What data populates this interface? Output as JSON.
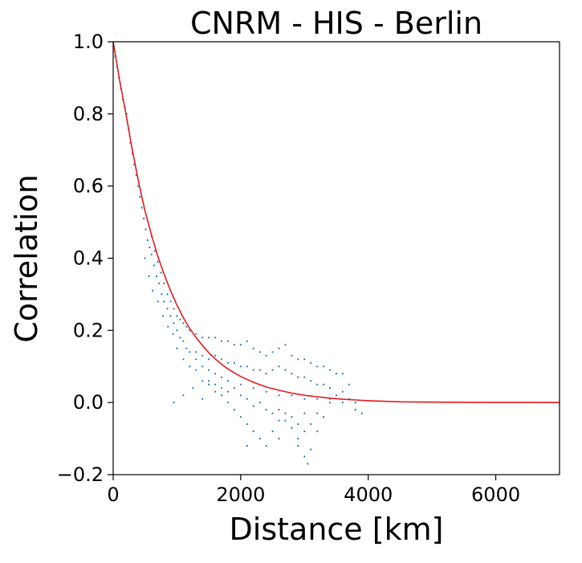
{
  "chart_data": {
    "type": "scatter",
    "title": "CNRM - HIS - Berlin",
    "xlabel": "Distance [km]",
    "ylabel": "Correlation",
    "xlim": [
      0,
      7000
    ],
    "ylim": [
      -0.2,
      1.0
    ],
    "x_ticks": [
      0,
      2000,
      4000,
      6000
    ],
    "x_tick_labels": [
      "0",
      "2000",
      "4000",
      "6000"
    ],
    "y_ticks": [
      -0.2,
      0.0,
      0.2,
      0.4,
      0.6,
      0.8,
      1.0
    ],
    "y_tick_labels": [
      "−0.2",
      "0.0",
      "0.2",
      "0.4",
      "0.6",
      "0.8",
      "1.0"
    ],
    "grid": false,
    "legend": "none",
    "colors": {
      "scatter": "#1f77b4",
      "fit": "#e31a1c"
    },
    "scatter_points": [
      [
        30,
        0.96
      ],
      [
        60,
        0.93
      ],
      [
        90,
        0.9
      ],
      [
        120,
        0.87
      ],
      [
        150,
        0.84
      ],
      [
        180,
        0.82
      ],
      [
        210,
        0.8
      ],
      [
        240,
        0.76
      ],
      [
        270,
        0.72
      ],
      [
        300,
        0.69
      ],
      [
        330,
        0.66
      ],
      [
        360,
        0.63
      ],
      [
        390,
        0.6
      ],
      [
        420,
        0.57
      ],
      [
        450,
        0.54
      ],
      [
        480,
        0.51
      ],
      [
        510,
        0.48
      ],
      [
        540,
        0.45
      ],
      [
        570,
        0.43
      ],
      [
        600,
        0.41
      ],
      [
        640,
        0.38
      ],
      [
        680,
        0.35
      ],
      [
        720,
        0.33
      ],
      [
        760,
        0.3
      ],
      [
        800,
        0.28
      ],
      [
        850,
        0.26
      ],
      [
        900,
        0.24
      ],
      [
        950,
        0.22
      ],
      [
        1000,
        0.2
      ],
      [
        1050,
        0.18
      ],
      [
        1100,
        0.17
      ],
      [
        1150,
        0.15
      ],
      [
        1200,
        0.14
      ],
      [
        1300,
        0.12
      ],
      [
        1400,
        0.1
      ],
      [
        1500,
        0.09
      ],
      [
        1600,
        0.08
      ],
      [
        1700,
        0.07
      ],
      [
        1800,
        0.06
      ],
      [
        2000,
        0.05
      ],
      [
        2200,
        0.04
      ],
      [
        2400,
        0.03
      ],
      [
        2600,
        0.02
      ],
      [
        2800,
        0.02
      ],
      [
        3000,
        0.01
      ],
      [
        3200,
        0.01
      ],
      [
        3400,
        0.01
      ],
      [
        3600,
        0.0
      ],
      [
        3800,
        0.0
      ],
      [
        500,
        0.4
      ],
      [
        560,
        0.35
      ],
      [
        620,
        0.31
      ],
      [
        700,
        0.28
      ],
      [
        780,
        0.24
      ],
      [
        860,
        0.21
      ],
      [
        940,
        0.19
      ],
      [
        1000,
        0.15
      ],
      [
        1100,
        0.12
      ],
      [
        1200,
        0.1
      ],
      [
        1300,
        0.09
      ],
      [
        1400,
        0.06
      ],
      [
        1500,
        0.05
      ],
      [
        1600,
        0.03
      ],
      [
        1700,
        0.02
      ],
      [
        1800,
        0.0
      ],
      [
        1900,
        -0.02
      ],
      [
        2000,
        -0.04
      ],
      [
        2100,
        -0.06
      ],
      [
        2200,
        -0.08
      ],
      [
        2300,
        -0.1
      ],
      [
        2400,
        -0.12
      ],
      [
        2500,
        -0.08
      ],
      [
        2600,
        -0.05
      ],
      [
        2700,
        -0.03
      ],
      [
        2800,
        -0.07
      ],
      [
        2900,
        -0.12
      ],
      [
        3000,
        -0.15
      ],
      [
        3050,
        -0.17
      ],
      [
        3100,
        -0.13
      ],
      [
        3200,
        -0.08
      ],
      [
        3300,
        -0.04
      ],
      [
        3400,
        0.0
      ],
      [
        3500,
        0.02
      ],
      [
        3600,
        0.03
      ],
      [
        3700,
        0.01
      ],
      [
        3800,
        -0.02
      ],
      [
        3900,
        -0.03
      ],
      [
        600,
        0.46
      ],
      [
        650,
        0.42
      ],
      [
        700,
        0.39
      ],
      [
        750,
        0.36
      ],
      [
        800,
        0.33
      ],
      [
        850,
        0.3
      ],
      [
        900,
        0.28
      ],
      [
        950,
        0.26
      ],
      [
        1000,
        0.24
      ],
      [
        1050,
        0.23
      ],
      [
        1100,
        0.22
      ],
      [
        1150,
        0.21
      ],
      [
        1200,
        0.2
      ],
      [
        1300,
        0.19
      ],
      [
        1400,
        0.18
      ],
      [
        1500,
        0.18
      ],
      [
        1600,
        0.18
      ],
      [
        1700,
        0.17
      ],
      [
        1800,
        0.17
      ],
      [
        1900,
        0.16
      ],
      [
        2000,
        0.16
      ],
      [
        2100,
        0.17
      ],
      [
        2200,
        0.15
      ],
      [
        2300,
        0.14
      ],
      [
        2400,
        0.13
      ],
      [
        2500,
        0.14
      ],
      [
        2600,
        0.15
      ],
      [
        2700,
        0.16
      ],
      [
        2800,
        0.13
      ],
      [
        2900,
        0.12
      ],
      [
        3000,
        0.12
      ],
      [
        3100,
        0.11
      ],
      [
        3200,
        0.1
      ],
      [
        3300,
        0.1
      ],
      [
        3400,
        0.09
      ],
      [
        3500,
        0.08
      ],
      [
        1300,
        0.14
      ],
      [
        1400,
        0.13
      ],
      [
        1500,
        0.12
      ],
      [
        1600,
        0.13
      ],
      [
        1700,
        0.12
      ],
      [
        1800,
        0.11
      ],
      [
        1900,
        0.11
      ],
      [
        2000,
        0.1
      ],
      [
        2100,
        0.1
      ],
      [
        2200,
        0.09
      ],
      [
        2300,
        0.09
      ],
      [
        2400,
        0.08
      ],
      [
        2500,
        0.09
      ],
      [
        2600,
        0.1
      ],
      [
        2700,
        0.09
      ],
      [
        2800,
        0.08
      ],
      [
        2900,
        0.07
      ],
      [
        3000,
        0.07
      ],
      [
        3100,
        0.06
      ],
      [
        3200,
        0.05
      ],
      [
        3300,
        0.05
      ],
      [
        3400,
        0.04
      ],
      [
        1500,
        0.06
      ],
      [
        1600,
        0.05
      ],
      [
        1700,
        0.04
      ],
      [
        1800,
        0.03
      ],
      [
        1900,
        0.04
      ],
      [
        2000,
        0.02
      ],
      [
        2100,
        0.01
      ],
      [
        2200,
        -0.01
      ],
      [
        2300,
        0.0
      ],
      [
        2400,
        -0.02
      ],
      [
        2500,
        -0.03
      ],
      [
        2600,
        -0.02
      ],
      [
        2700,
        -0.05
      ],
      [
        2800,
        -0.04
      ],
      [
        2900,
        -0.06
      ],
      [
        3000,
        -0.08
      ],
      [
        3100,
        -0.06
      ],
      [
        3200,
        -0.03
      ],
      [
        950,
        0.0
      ],
      [
        1100,
        0.02
      ],
      [
        1250,
        0.04
      ],
      [
        1400,
        0.01
      ],
      [
        2100,
        -0.12
      ],
      [
        2600,
        -0.1
      ],
      [
        2900,
        -0.1
      ],
      [
        3000,
        -0.03
      ],
      [
        3600,
        0.08
      ],
      [
        3700,
        0.05
      ]
    ],
    "fit_curve": [
      [
        0,
        1.0
      ],
      [
        100,
        0.895
      ],
      [
        200,
        0.8
      ],
      [
        300,
        0.7
      ],
      [
        400,
        0.61
      ],
      [
        500,
        0.53
      ],
      [
        600,
        0.465
      ],
      [
        700,
        0.405
      ],
      [
        800,
        0.355
      ],
      [
        900,
        0.31
      ],
      [
        1000,
        0.27
      ],
      [
        1100,
        0.235
      ],
      [
        1200,
        0.205
      ],
      [
        1300,
        0.18
      ],
      [
        1400,
        0.158
      ],
      [
        1500,
        0.138
      ],
      [
        1600,
        0.121
      ],
      [
        1700,
        0.106
      ],
      [
        1800,
        0.093
      ],
      [
        1900,
        0.082
      ],
      [
        2000,
        0.072
      ],
      [
        2200,
        0.056
      ],
      [
        2400,
        0.043
      ],
      [
        2600,
        0.034
      ],
      [
        2800,
        0.026
      ],
      [
        3000,
        0.02
      ],
      [
        3200,
        0.016
      ],
      [
        3400,
        0.012
      ],
      [
        3600,
        0.009
      ],
      [
        3800,
        0.007
      ],
      [
        4000,
        0.005
      ],
      [
        4500,
        0.002
      ],
      [
        5000,
        0.001
      ],
      [
        5500,
        0.0005
      ],
      [
        6000,
        0.0002
      ],
      [
        6500,
        0.0001
      ],
      [
        7000,
        0.0
      ]
    ]
  }
}
